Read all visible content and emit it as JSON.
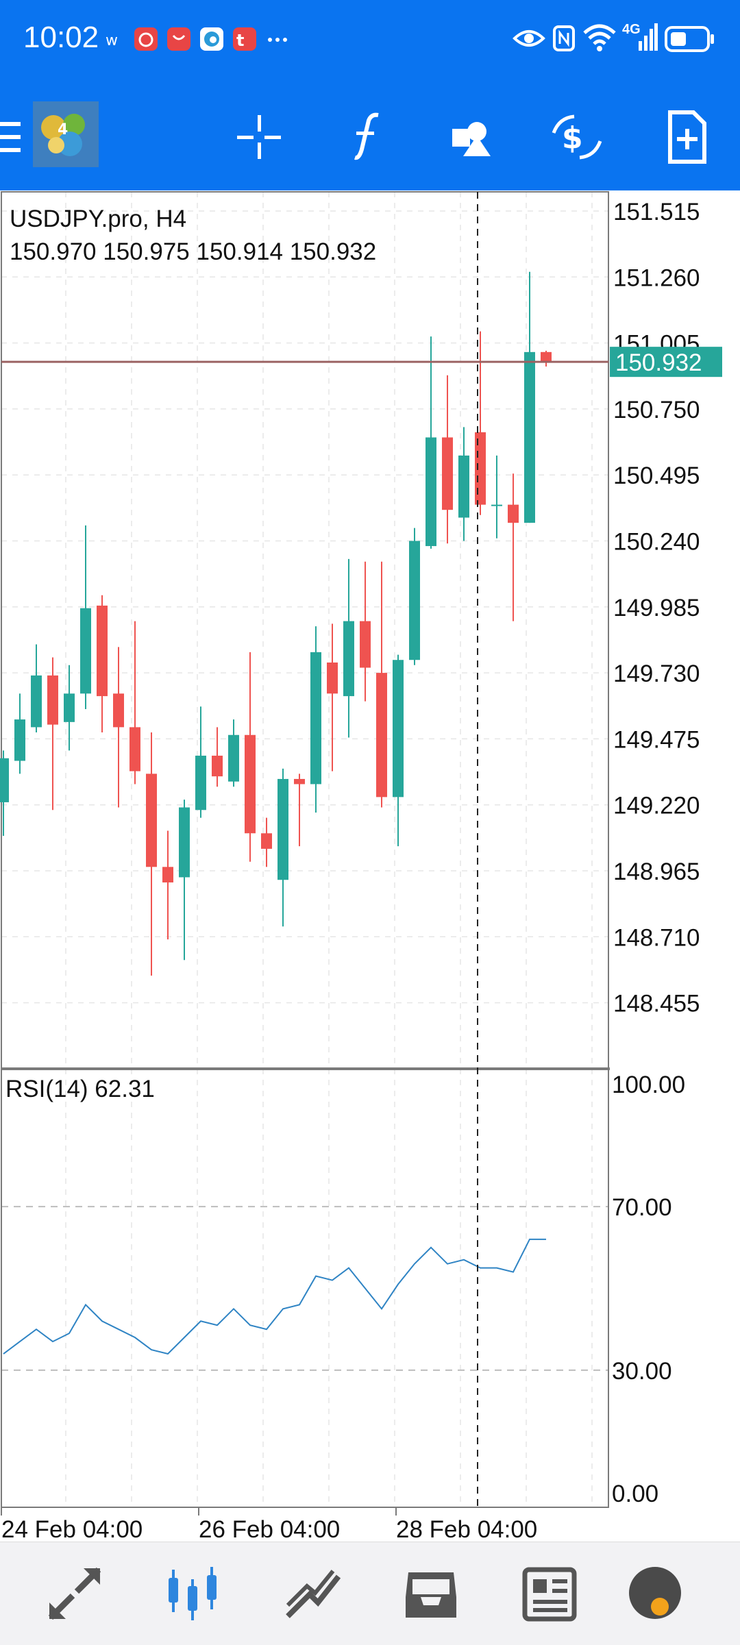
{
  "status_bar": {
    "time": "10:02",
    "network_label": "4G",
    "notification_icons": [
      "weibo-icon",
      "netease-music-icon",
      "huawei-appgallery-icon",
      "edge-browser-icon",
      "taobao-icon",
      "more-dots-icon"
    ],
    "system_icons": [
      "eye-icon",
      "nfc-icon",
      "wifi-icon",
      "signal-icon",
      "battery-icon"
    ]
  },
  "toolbar": {
    "icons": [
      "menu-icon",
      "metatrader-logo-icon",
      "crosshair-icon",
      "indicators-icon",
      "objects-icon",
      "trade-icon",
      "new-order-icon"
    ]
  },
  "chart": {
    "symbol_timeframe": "USDJPY.pro, H4",
    "ohlc_line": "150.970 150.975 150.914 150.932",
    "current_price_label": "150.932",
    "price_axis_labels": [
      "151.515",
      "151.260",
      "151.005",
      "150.750",
      "150.495",
      "150.240",
      "149.985",
      "149.730",
      "149.475",
      "149.220",
      "148.965",
      "148.710",
      "148.455"
    ],
    "rsi_label": "RSI(14) 62.31",
    "rsi_axis_labels": [
      "100.00",
      "70.00",
      "30.00",
      "0.00"
    ],
    "time_axis_labels": [
      "24 Feb 04:00",
      "26 Feb 04:00",
      "28 Feb 04:00"
    ],
    "colors": {
      "bull": "#26a69a",
      "bear": "#ef5350",
      "rsi_line": "#2f84c4",
      "price_line": "#9b6262",
      "price_badge": "#26a69a"
    }
  },
  "chart_data": [
    {
      "type": "candlestick",
      "title": "USDJPY.pro, H4",
      "ylim": [
        148.2,
        151.57
      ],
      "yticks": [
        151.515,
        151.26,
        151.005,
        150.75,
        150.495,
        150.24,
        149.985,
        149.73,
        149.475,
        149.22,
        148.965,
        148.71,
        148.455
      ],
      "last_price": 150.932,
      "candles": [
        {
          "o": 149.23,
          "h": 149.43,
          "l": 149.1,
          "c": 149.4
        },
        {
          "o": 149.39,
          "h": 149.65,
          "l": 149.34,
          "c": 149.55
        },
        {
          "o": 149.52,
          "h": 149.84,
          "l": 149.5,
          "c": 149.72
        },
        {
          "o": 149.72,
          "h": 149.79,
          "l": 149.2,
          "c": 149.53
        },
        {
          "o": 149.54,
          "h": 149.76,
          "l": 149.43,
          "c": 149.65
        },
        {
          "o": 149.65,
          "h": 150.3,
          "l": 149.59,
          "c": 149.98
        },
        {
          "o": 149.99,
          "h": 150.03,
          "l": 149.5,
          "c": 149.64
        },
        {
          "o": 149.65,
          "h": 149.83,
          "l": 149.21,
          "c": 149.52
        },
        {
          "o": 149.52,
          "h": 149.93,
          "l": 149.3,
          "c": 149.35
        },
        {
          "o": 149.34,
          "h": 149.5,
          "l": 148.56,
          "c": 148.98
        },
        {
          "o": 148.98,
          "h": 149.12,
          "l": 148.7,
          "c": 148.92
        },
        {
          "o": 148.94,
          "h": 149.24,
          "l": 148.62,
          "c": 149.21
        },
        {
          "o": 149.2,
          "h": 149.6,
          "l": 149.17,
          "c": 149.41
        },
        {
          "o": 149.41,
          "h": 149.52,
          "l": 149.29,
          "c": 149.33
        },
        {
          "o": 149.31,
          "h": 149.55,
          "l": 149.29,
          "c": 149.49
        },
        {
          "o": 149.49,
          "h": 149.81,
          "l": 149.0,
          "c": 149.11
        },
        {
          "o": 149.11,
          "h": 149.17,
          "l": 148.98,
          "c": 149.05
        },
        {
          "o": 148.93,
          "h": 149.36,
          "l": 148.75,
          "c": 149.32
        },
        {
          "o": 149.32,
          "h": 149.34,
          "l": 149.06,
          "c": 149.3
        },
        {
          "o": 149.3,
          "h": 149.91,
          "l": 149.19,
          "c": 149.81
        },
        {
          "o": 149.77,
          "h": 149.92,
          "l": 149.35,
          "c": 149.65
        },
        {
          "o": 149.64,
          "h": 150.17,
          "l": 149.48,
          "c": 149.93
        },
        {
          "o": 149.93,
          "h": 150.16,
          "l": 149.62,
          "c": 149.75
        },
        {
          "o": 149.73,
          "h": 150.16,
          "l": 149.21,
          "c": 149.25
        },
        {
          "o": 149.25,
          "h": 149.8,
          "l": 149.06,
          "c": 149.78
        },
        {
          "o": 149.78,
          "h": 150.29,
          "l": 149.76,
          "c": 150.24
        },
        {
          "o": 150.22,
          "h": 151.03,
          "l": 150.21,
          "c": 150.64
        },
        {
          "o": 150.64,
          "h": 150.88,
          "l": 150.23,
          "c": 150.36
        },
        {
          "o": 150.33,
          "h": 150.68,
          "l": 150.24,
          "c": 150.57
        },
        {
          "o": 150.66,
          "h": 151.05,
          "l": 150.34,
          "c": 150.38
        },
        {
          "o": 150.38,
          "h": 150.57,
          "l": 150.25,
          "c": 150.38
        },
        {
          "o": 150.38,
          "h": 150.5,
          "l": 149.93,
          "c": 150.31
        },
        {
          "o": 150.31,
          "h": 151.28,
          "l": 150.31,
          "c": 150.97
        },
        {
          "o": 150.97,
          "h": 150.975,
          "l": 150.914,
          "c": 150.932
        }
      ]
    },
    {
      "type": "line",
      "title": "RSI(14) 62.31",
      "ylim": [
        0,
        100
      ],
      "yticks": [
        100,
        70,
        30,
        0
      ],
      "levels": [
        70,
        30
      ],
      "series": [
        {
          "values": [
            34,
            37,
            40,
            37,
            39,
            46,
            42,
            40,
            38,
            35,
            34,
            38,
            42,
            41,
            45,
            41,
            40,
            45,
            46,
            53,
            52,
            55,
            50,
            45,
            51,
            56,
            60,
            56,
            57,
            55,
            55,
            54,
            62,
            62
          ]
        }
      ]
    }
  ]
}
